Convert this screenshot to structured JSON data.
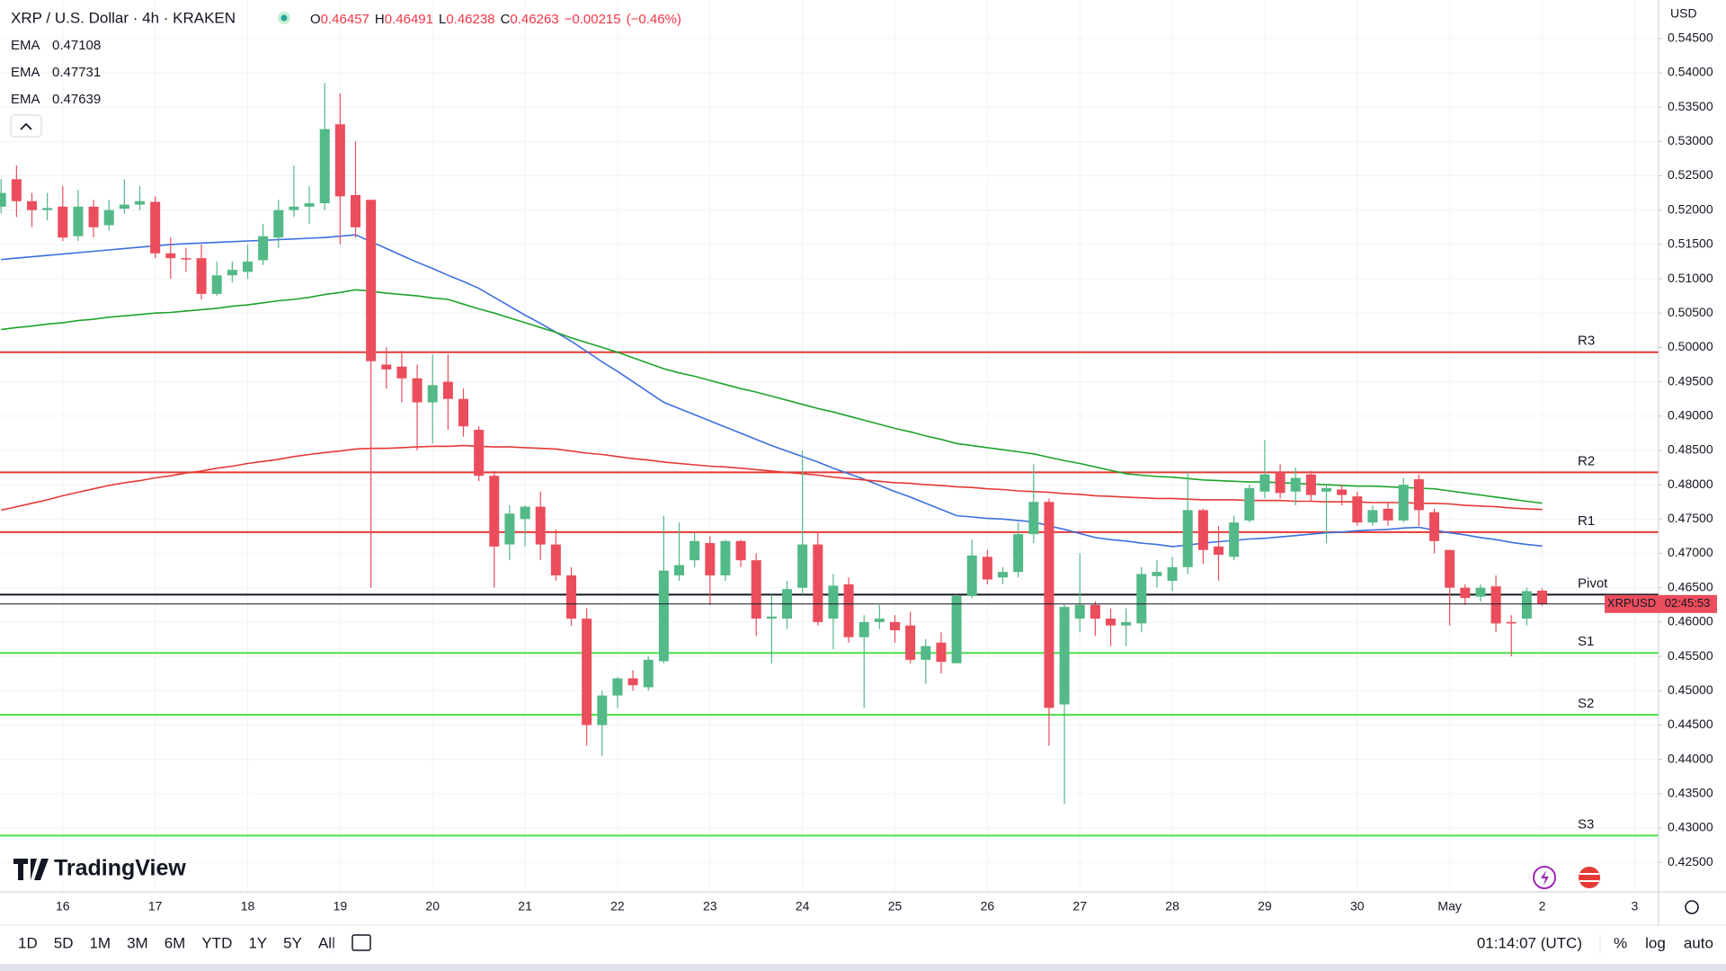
{
  "header": {
    "symbol": "XRP / U.S. Dollar · 4h · KRAKEN",
    "o": "O",
    "h": "H",
    "l": "L",
    "c": "C",
    "change": "−0.00215",
    "change_pct": "(−0.46%)"
  },
  "logo": "TradingView",
  "toolbar": {
    "ranges": [
      "1D",
      "5D",
      "1M",
      "3M",
      "6M",
      "YTD",
      "1Y",
      "5Y",
      "All"
    ],
    "clock": "01:14:07 (UTC)",
    "options": [
      "%",
      "log",
      "auto"
    ]
  },
  "chart_data": {
    "type": "candlestick",
    "currency": "USD",
    "price_tag": {
      "symbol": "XRPUSD",
      "countdown": "02:45:53"
    },
    "up_color": "#53b987",
    "down_color": "#eb4d5c",
    "grid": true,
    "categories": [
      null,
      null,
      null,
      null,
      "16",
      null,
      null,
      null,
      null,
      null,
      "17",
      null,
      null,
      null,
      null,
      null,
      "18",
      null,
      null,
      null,
      null,
      null,
      "19",
      null,
      null,
      null,
      null,
      null,
      "20",
      null,
      null,
      null,
      null,
      null,
      "21",
      null,
      null,
      null,
      null,
      null,
      "22",
      null,
      null,
      null,
      null,
      null,
      "23",
      null,
      null,
      null,
      null,
      null,
      "24",
      null,
      null,
      null,
      null,
      null,
      "25",
      null,
      null,
      null,
      null,
      null,
      "26",
      null,
      null,
      null,
      null,
      null,
      "27",
      null,
      null,
      null,
      null,
      null,
      "28",
      null,
      null,
      null,
      null,
      null,
      "29",
      null,
      null,
      null,
      null,
      null,
      "30",
      null,
      null,
      null,
      null,
      null,
      "May",
      null,
      null,
      null,
      null,
      null,
      "2",
      null,
      null,
      null,
      null,
      null,
      "3"
    ],
    "open": [
      0.5205,
      0.5245,
      0.5213,
      0.52,
      0.5205,
      0.5162,
      0.5205,
      0.5178,
      0.5202,
      0.5208,
      0.5212,
      0.5137,
      0.513,
      0.513,
      0.5078,
      0.5105,
      0.511,
      0.5127,
      0.516,
      0.52,
      0.5205,
      0.521,
      0.5325,
      0.5222,
      0.5215,
      0.4975,
      0.4972,
      0.4955,
      0.492,
      0.495,
      0.4925,
      0.488,
      0.4813,
      0.4713,
      0.475,
      0.4768,
      0.4713,
      0.4668,
      0.4605,
      0.445,
      0.4493,
      0.4518,
      0.4505,
      0.4543,
      0.4668,
      0.469,
      0.4715,
      0.4668,
      0.4718,
      0.469,
      0.4605,
      0.4605,
      0.465,
      0.4713,
      0.4605,
      0.4655,
      0.4578,
      0.46,
      0.46,
      0.4595,
      0.4545,
      0.457,
      0.454,
      0.4638,
      0.4695,
      0.4665,
      0.4673,
      0.4728,
      0.4775,
      0.448,
      0.4605,
      0.4625,
      0.4605,
      0.4595,
      0.4598,
      0.4667,
      0.466,
      0.468,
      0.4763,
      0.471,
      0.4695,
      0.4748,
      0.479,
      0.4818,
      0.479,
      0.4815,
      0.479,
      0.4793,
      0.4783,
      0.4745,
      0.4765,
      0.4748,
      0.4808,
      0.476,
      0.4705,
      0.465,
      0.4637,
      0.4652,
      0.46,
      0.4605,
      0.46457,
      null,
      null,
      null,
      null,
      null,
      null
    ],
    "high": [
      0.5245,
      0.5265,
      0.5225,
      0.5225,
      0.5235,
      0.523,
      0.5215,
      0.5215,
      0.5245,
      0.5235,
      0.522,
      0.516,
      0.5145,
      0.515,
      0.5125,
      0.5125,
      0.515,
      0.518,
      0.5215,
      0.5265,
      0.5235,
      0.5385,
      0.537,
      0.53,
      0.5215,
      0.5,
      0.4995,
      0.4975,
      0.499,
      0.499,
      0.494,
      0.4885,
      0.482,
      0.477,
      0.477,
      0.479,
      0.4735,
      0.468,
      0.462,
      0.45,
      0.452,
      0.453,
      0.455,
      0.4755,
      0.4745,
      0.473,
      0.4725,
      0.472,
      0.472,
      0.47,
      0.464,
      0.466,
      0.485,
      0.473,
      0.467,
      0.4665,
      0.461,
      0.4625,
      0.461,
      0.4615,
      0.4575,
      0.4585,
      0.464,
      0.472,
      0.4705,
      0.468,
      0.4745,
      0.483,
      0.478,
      0.4625,
      0.47,
      0.463,
      0.462,
      0.462,
      0.468,
      0.469,
      0.4695,
      0.482,
      0.4765,
      0.474,
      0.4755,
      0.48,
      0.4865,
      0.483,
      0.4825,
      0.482,
      0.48,
      0.48,
      0.479,
      0.477,
      0.4775,
      0.481,
      0.4815,
      0.4765,
      0.4705,
      0.4655,
      0.4655,
      0.4668,
      0.461,
      0.465,
      0.46491,
      null,
      null,
      null,
      null,
      null,
      null
    ],
    "low": [
      0.5195,
      0.519,
      0.5175,
      0.5185,
      0.5155,
      0.5155,
      0.516,
      0.517,
      0.5195,
      0.52,
      0.513,
      0.51,
      0.511,
      0.507,
      0.5075,
      0.5095,
      0.51,
      0.512,
      0.5145,
      0.519,
      0.518,
      0.52,
      0.515,
      0.516,
      0.465,
      0.494,
      0.492,
      0.485,
      0.486,
      0.488,
      0.487,
      0.4805,
      0.465,
      0.469,
      0.471,
      0.469,
      0.466,
      0.4595,
      0.442,
      0.4405,
      0.4475,
      0.45,
      0.45,
      0.454,
      0.466,
      0.468,
      0.4625,
      0.466,
      0.468,
      0.458,
      0.454,
      0.459,
      0.464,
      0.4595,
      0.456,
      0.457,
      0.4475,
      0.459,
      0.457,
      0.454,
      0.451,
      0.4525,
      0.454,
      0.4635,
      0.4655,
      0.4655,
      0.4665,
      0.4715,
      0.442,
      0.4335,
      0.4585,
      0.458,
      0.4565,
      0.4565,
      0.4585,
      0.465,
      0.4645,
      0.467,
      0.4685,
      0.466,
      0.469,
      0.4745,
      0.478,
      0.478,
      0.477,
      0.4775,
      0.4715,
      0.477,
      0.474,
      0.474,
      0.474,
      0.4745,
      0.474,
      0.47,
      0.4595,
      0.4625,
      0.463,
      0.4585,
      0.455,
      0.4595,
      0.46238,
      null,
      null,
      null,
      null,
      null,
      null
    ],
    "close": [
      0.5225,
      0.5213,
      0.52,
      0.5203,
      0.516,
      0.5205,
      0.5175,
      0.52,
      0.5208,
      0.5213,
      0.5137,
      0.513,
      0.5128,
      0.5078,
      0.5105,
      0.5113,
      0.5125,
      0.5162,
      0.52,
      0.5205,
      0.521,
      0.5318,
      0.522,
      0.5175,
      0.498,
      0.4968,
      0.4955,
      0.492,
      0.4945,
      0.4925,
      0.4885,
      0.4813,
      0.471,
      0.4758,
      0.4768,
      0.4713,
      0.4668,
      0.4605,
      0.445,
      0.4493,
      0.4518,
      0.4508,
      0.4545,
      0.4675,
      0.4683,
      0.4718,
      0.4668,
      0.4718,
      0.469,
      0.4605,
      0.4608,
      0.4648,
      0.4713,
      0.46,
      0.4653,
      0.4578,
      0.46,
      0.4605,
      0.4588,
      0.4545,
      0.4565,
      0.4542,
      0.4638,
      0.4697,
      0.4662,
      0.4673,
      0.4728,
      0.4775,
      0.4475,
      0.4622,
      0.4625,
      0.4605,
      0.4595,
      0.46,
      0.467,
      0.4673,
      0.468,
      0.4763,
      0.4705,
      0.4698,
      0.4745,
      0.4795,
      0.4815,
      0.4788,
      0.481,
      0.4785,
      0.4795,
      0.4785,
      0.4745,
      0.4763,
      0.4748,
      0.48,
      0.4763,
      0.4718,
      0.465,
      0.4635,
      0.465,
      0.4598,
      0.4598,
      0.4645,
      0.46263,
      null,
      null,
      null,
      null,
      null,
      null
    ],
    "series": [
      {
        "name": "EMA",
        "color": "#3b6fe0",
        "values": [
          0.5128,
          0.513,
          0.5132,
          0.5134,
          0.5136,
          0.5138,
          0.514,
          0.5142,
          0.5144,
          0.5146,
          0.5148,
          0.515,
          0.5151,
          0.5152,
          0.5153,
          0.5154,
          0.5155,
          0.5156,
          0.5157,
          0.5158,
          0.5159,
          0.516,
          0.5162,
          0.5164,
          0.5154,
          0.5144,
          0.5134,
          0.5124,
          0.5115,
          0.5105,
          0.5096,
          0.5086,
          0.5073,
          0.506,
          0.5047,
          0.5035,
          0.5022,
          0.5009,
          0.4994,
          0.4979,
          0.4965,
          0.495,
          0.4935,
          0.492,
          0.4911,
          0.4902,
          0.4893,
          0.4884,
          0.4875,
          0.4866,
          0.4857,
          0.4849,
          0.4841,
          0.4833,
          0.4824,
          0.4816,
          0.4808,
          0.4799,
          0.479,
          0.4782,
          0.4773,
          0.4764,
          0.4755,
          0.4753,
          0.4751,
          0.475,
          0.4748,
          0.4746,
          0.474,
          0.4735,
          0.4729,
          0.4723,
          0.472,
          0.4718,
          0.4715,
          0.4713,
          0.471,
          0.4712,
          0.4715,
          0.4717,
          0.4719,
          0.4721,
          0.4722,
          0.4724,
          0.4726,
          0.4728,
          0.473,
          0.4731,
          0.4733,
          0.4734,
          0.4735,
          0.4737,
          0.4738,
          0.4734,
          0.473,
          0.4727,
          0.4723,
          0.472,
          0.4716,
          0.4713,
          0.47108,
          null,
          null,
          null,
          null,
          null,
          null
        ]
      },
      {
        "name": "EMA",
        "color": "#1fa32b",
        "values": [
          0.5026,
          0.5029,
          0.5031,
          0.5034,
          0.5036,
          0.5039,
          0.5041,
          0.5044,
          0.5046,
          0.5048,
          0.505,
          0.5051,
          0.5053,
          0.5055,
          0.5057,
          0.506,
          0.5062,
          0.5065,
          0.5068,
          0.507,
          0.5073,
          0.5077,
          0.508,
          0.5084,
          0.5082,
          0.5079,
          0.5077,
          0.5075,
          0.5072,
          0.507,
          0.5063,
          0.5056,
          0.505,
          0.5043,
          0.5036,
          0.5029,
          0.5022,
          0.5014,
          0.5007,
          0.5,
          0.4993,
          0.4985,
          0.4977,
          0.4969,
          0.4963,
          0.4958,
          0.4952,
          0.4946,
          0.494,
          0.4935,
          0.4929,
          0.4923,
          0.4917,
          0.4911,
          0.4906,
          0.49,
          0.4894,
          0.4888,
          0.4882,
          0.4877,
          0.4871,
          0.4866,
          0.486,
          0.4857,
          0.4854,
          0.4851,
          0.4848,
          0.4845,
          0.484,
          0.4835,
          0.4831,
          0.4826,
          0.4821,
          0.4816,
          0.4814,
          0.4812,
          0.4811,
          0.4809,
          0.4807,
          0.4806,
          0.4805,
          0.4804,
          0.4804,
          0.4803,
          0.4802,
          0.4801,
          0.48,
          0.4799,
          0.4798,
          0.4798,
          0.4797,
          0.4796,
          0.4795,
          0.4794,
          0.4791,
          0.4788,
          0.4785,
          0.4782,
          0.4779,
          0.4776,
          0.47731,
          null,
          null,
          null,
          null,
          null,
          null
        ]
      },
      {
        "name": "EMA",
        "color": "#e53935",
        "values": [
          0.4763,
          0.4768,
          0.4773,
          0.4778,
          0.4784,
          0.4789,
          0.4794,
          0.4799,
          0.4803,
          0.4806,
          0.481,
          0.4813,
          0.4817,
          0.482,
          0.4824,
          0.4827,
          0.4831,
          0.4834,
          0.4837,
          0.4841,
          0.4844,
          0.4847,
          0.4849,
          0.4852,
          0.4853,
          0.4853,
          0.4854,
          0.4855,
          0.4856,
          0.4856,
          0.4857,
          0.4856,
          0.4855,
          0.4855,
          0.4854,
          0.4853,
          0.4852,
          0.4849,
          0.4846,
          0.4844,
          0.4841,
          0.4838,
          0.4836,
          0.4833,
          0.4831,
          0.4829,
          0.4827,
          0.4826,
          0.4824,
          0.4822,
          0.482,
          0.4818,
          0.4816,
          0.4814,
          0.4811,
          0.4809,
          0.4807,
          0.4805,
          0.4803,
          0.4802,
          0.48,
          0.4799,
          0.4797,
          0.4796,
          0.4794,
          0.4793,
          0.4791,
          0.479,
          0.4789,
          0.4787,
          0.4786,
          0.4784,
          0.4783,
          0.4782,
          0.4781,
          0.478,
          0.478,
          0.4779,
          0.4778,
          0.4778,
          0.4778,
          0.4777,
          0.4777,
          0.4777,
          0.4776,
          0.4776,
          0.4775,
          0.4775,
          0.4775,
          0.4774,
          0.4774,
          0.4774,
          0.4773,
          0.4773,
          0.4772,
          0.477,
          0.4769,
          0.4768,
          0.4766,
          0.4765,
          0.47639,
          null,
          null,
          null,
          null,
          null,
          null
        ]
      }
    ],
    "levels": [
      {
        "name": "R3",
        "value": 0.4993,
        "color": "#e53935"
      },
      {
        "name": "R2",
        "value": 0.4818,
        "color": "#e53935"
      },
      {
        "name": "R1",
        "value": 0.4731,
        "color": "#e53935"
      },
      {
        "name": "Pivot",
        "value": 0.464,
        "color": "#131722"
      },
      {
        "name": "S1",
        "value": 0.4555,
        "color": "#4ce04c"
      },
      {
        "name": "S2",
        "value": 0.4465,
        "color": "#4ce04c"
      },
      {
        "name": "S3",
        "value": 0.4289,
        "color": "#4ce04c"
      }
    ],
    "ylim": [
      0.4207,
      0.5506
    ],
    "yticks": [
      {
        "value": 0.425,
        "label": "0.42500"
      },
      {
        "value": 0.43,
        "label": "0.43000"
      },
      {
        "value": 0.435,
        "label": "0.43500"
      },
      {
        "value": 0.44,
        "label": "0.44000"
      },
      {
        "value": 0.445,
        "label": "0.44500"
      },
      {
        "value": 0.45,
        "label": "0.45000"
      },
      {
        "value": 0.455,
        "label": "0.45500"
      },
      {
        "value": 0.46,
        "label": "0.46000"
      },
      {
        "value": 0.465,
        "label": "0.46500"
      },
      {
        "value": 0.47,
        "label": "0.47000"
      },
      {
        "value": 0.475,
        "label": "0.47500"
      },
      {
        "value": 0.48,
        "label": "0.48000"
      },
      {
        "value": 0.485,
        "label": "0.48500"
      },
      {
        "value": 0.49,
        "label": "0.49000"
      },
      {
        "value": 0.495,
        "label": "0.49500"
      },
      {
        "value": 0.5,
        "label": "0.50000"
      },
      {
        "value": 0.505,
        "label": "0.50500"
      },
      {
        "value": 0.51,
        "label": "0.51000"
      },
      {
        "value": 0.515,
        "label": "0.51500"
      },
      {
        "value": 0.52,
        "label": "0.52000"
      },
      {
        "value": 0.525,
        "label": "0.52500"
      },
      {
        "value": 0.53,
        "label": "0.53000"
      },
      {
        "value": 0.535,
        "label": "0.53500"
      },
      {
        "value": 0.54,
        "label": "0.54000"
      },
      {
        "value": 0.545,
        "label": "0.54500"
      }
    ]
  }
}
